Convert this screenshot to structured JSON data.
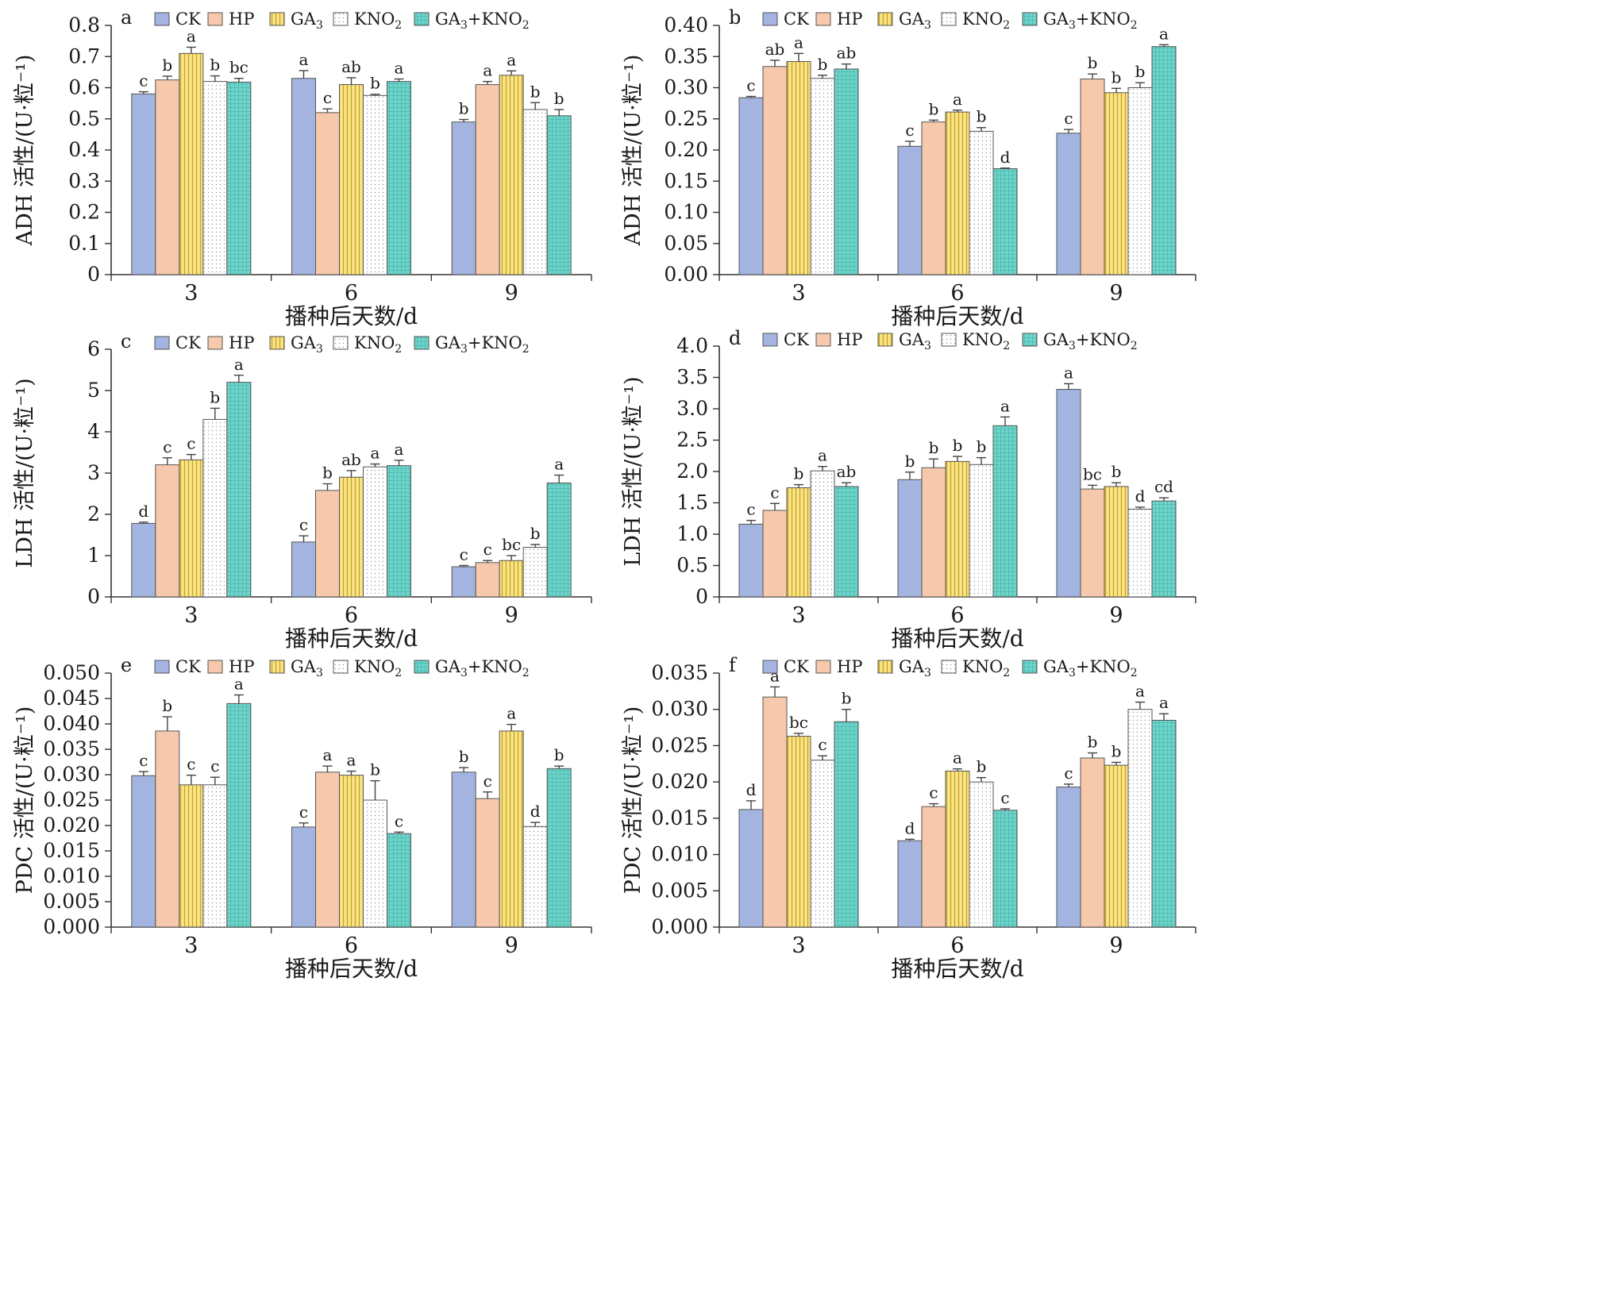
{
  "legend_labels": [
    "CK",
    "HP",
    "GA3",
    "KNO2",
    "GA3+KNO2"
  ],
  "series_styles": [
    {
      "fill": "#a3b4e0",
      "pattern": "solid"
    },
    {
      "fill": "#f6c9ac",
      "pattern": "solid"
    },
    {
      "fill": "#fbe68a",
      "pattern": "vlines"
    },
    {
      "fill": "#ffffff",
      "pattern": "dots"
    },
    {
      "fill": "#6fd3c9",
      "pattern": "grid"
    }
  ],
  "chart_data": [
    {
      "panel": "a",
      "type": "bar",
      "ylabel": "ADH 活性/(U·粒⁻¹)",
      "xlabel": "播种后天数/d",
      "categories": [
        "3",
        "6",
        "9"
      ],
      "ylim": [
        0,
        0.8
      ],
      "yticks": [
        "0",
        "0.1",
        "0.2",
        "0.3",
        "0.4",
        "0.5",
        "0.6",
        "0.7",
        "0.8"
      ],
      "series": [
        {
          "name": "CK",
          "values": [
            0.58,
            0.63,
            0.49
          ],
          "errors": [
            0.007,
            0.025,
            0.008
          ],
          "letters": [
            "c",
            "a",
            "b"
          ]
        },
        {
          "name": "HP",
          "values": [
            0.625,
            0.52,
            0.61
          ],
          "errors": [
            0.012,
            0.012,
            0.01
          ],
          "letters": [
            "b",
            "c",
            "a"
          ]
        },
        {
          "name": "GA3",
          "values": [
            0.71,
            0.61,
            0.64
          ],
          "errors": [
            0.02,
            0.022,
            0.014
          ],
          "letters": [
            "a",
            "ab",
            "a"
          ]
        },
        {
          "name": "KNO2",
          "values": [
            0.62,
            0.575,
            0.53
          ],
          "errors": [
            0.018,
            0.004,
            0.022
          ],
          "letters": [
            "b",
            "b",
            "b"
          ]
        },
        {
          "name": "GA3+KNO2",
          "values": [
            0.618,
            0.62,
            0.51
          ],
          "errors": [
            0.012,
            0.008,
            0.02
          ],
          "letters": [
            "bc",
            "a",
            "b"
          ]
        }
      ]
    },
    {
      "panel": "b",
      "type": "bar",
      "ylabel": "ADH 活性/(U·粒⁻¹)",
      "xlabel": "播种后天数/d",
      "categories": [
        "3",
        "6",
        "9"
      ],
      "ylim": [
        0,
        0.4
      ],
      "yticks": [
        "0.00",
        "0.05",
        "0.10",
        "0.15",
        "0.20",
        "0.25",
        "0.30",
        "0.35",
        "0.40"
      ],
      "series": [
        {
          "name": "CK",
          "values": [
            0.284,
            0.206,
            0.227
          ],
          "errors": [
            0.002,
            0.008,
            0.006
          ],
          "letters": [
            "c",
            "c",
            "c"
          ]
        },
        {
          "name": "HP",
          "values": [
            0.334,
            0.245,
            0.314
          ],
          "errors": [
            0.01,
            0.003,
            0.008
          ],
          "letters": [
            "ab",
            "b",
            "b"
          ]
        },
        {
          "name": "GA3",
          "values": [
            0.342,
            0.261,
            0.292
          ],
          "errors": [
            0.013,
            0.003,
            0.007
          ],
          "letters": [
            "a",
            "a",
            "b"
          ]
        },
        {
          "name": "KNO2",
          "values": [
            0.315,
            0.23,
            0.3
          ],
          "errors": [
            0.005,
            0.006,
            0.008
          ],
          "letters": [
            "b",
            "b",
            "b"
          ]
        },
        {
          "name": "GA3+KNO2",
          "values": [
            0.33,
            0.17,
            0.366
          ],
          "errors": [
            0.008,
            0.001,
            0.003
          ],
          "letters": [
            "ab",
            "d",
            "a"
          ]
        }
      ]
    },
    {
      "panel": "c",
      "type": "bar",
      "ylabel": "LDH 活性/(U·粒⁻¹)",
      "xlabel": "播种后天数/d",
      "categories": [
        "3",
        "6",
        "9"
      ],
      "ylim": [
        0,
        6
      ],
      "yticks": [
        "0",
        "1",
        "2",
        "3",
        "4",
        "5",
        "6"
      ],
      "series": [
        {
          "name": "CK",
          "values": [
            1.78,
            1.33,
            0.73
          ],
          "errors": [
            0.03,
            0.15,
            0.03
          ],
          "letters": [
            "d",
            "c",
            "c"
          ]
        },
        {
          "name": "HP",
          "values": [
            3.2,
            2.58,
            0.83
          ],
          "errors": [
            0.17,
            0.16,
            0.05
          ],
          "letters": [
            "c",
            "b",
            "c"
          ]
        },
        {
          "name": "GA3",
          "values": [
            3.32,
            2.9,
            0.88
          ],
          "errors": [
            0.13,
            0.16,
            0.12
          ],
          "letters": [
            "c",
            "ab",
            "bc"
          ]
        },
        {
          "name": "KNO2",
          "values": [
            4.3,
            3.15,
            1.2
          ],
          "errors": [
            0.27,
            0.07,
            0.07
          ],
          "letters": [
            "b",
            "a",
            "b"
          ]
        },
        {
          "name": "GA3+KNO2",
          "values": [
            5.2,
            3.18,
            2.76
          ],
          "errors": [
            0.17,
            0.13,
            0.19
          ],
          "letters": [
            "a",
            "a",
            "a"
          ]
        }
      ]
    },
    {
      "panel": "d",
      "type": "bar",
      "ylabel": "LDH 活性/(U·粒⁻¹)",
      "xlabel": "播种后天数/d",
      "categories": [
        "3",
        "6",
        "9"
      ],
      "ylim": [
        0,
        4.0
      ],
      "yticks": [
        "0",
        "0.5",
        "1.0",
        "1.5",
        "2.0",
        "2.5",
        "3.0",
        "3.5",
        "4.0"
      ],
      "series": [
        {
          "name": "CK",
          "values": [
            1.16,
            1.87,
            3.31
          ],
          "errors": [
            0.06,
            0.12,
            0.09
          ],
          "letters": [
            "c",
            "b",
            "a"
          ]
        },
        {
          "name": "HP",
          "values": [
            1.38,
            2.06,
            1.72
          ],
          "errors": [
            0.11,
            0.14,
            0.06
          ],
          "letters": [
            "c",
            "b",
            "bc"
          ]
        },
        {
          "name": "GA3",
          "values": [
            1.74,
            2.16,
            1.76
          ],
          "errors": [
            0.05,
            0.08,
            0.06
          ],
          "letters": [
            "b",
            "b",
            "b"
          ]
        },
        {
          "name": "KNO2",
          "values": [
            2.01,
            2.11,
            1.4
          ],
          "errors": [
            0.07,
            0.11,
            0.03
          ],
          "letters": [
            "a",
            "b",
            "d"
          ]
        },
        {
          "name": "GA3+KNO2",
          "values": [
            1.76,
            2.73,
            1.53
          ],
          "errors": [
            0.06,
            0.14,
            0.05
          ],
          "letters": [
            "ab",
            "a",
            "cd"
          ]
        }
      ]
    },
    {
      "panel": "e",
      "type": "bar",
      "ylabel": "PDC 活性/(U·粒⁻¹)",
      "xlabel": "播种后天数/d",
      "categories": [
        "3",
        "6",
        "9"
      ],
      "ylim": [
        0,
        0.05
      ],
      "yticks": [
        "0.000",
        "0.005",
        "0.010",
        "0.015",
        "0.020",
        "0.025",
        "0.030",
        "0.035",
        "0.040",
        "0.045",
        "0.050"
      ],
      "series": [
        {
          "name": "CK",
          "values": [
            0.0298,
            0.0197,
            0.0305
          ],
          "errors": [
            0.0008,
            0.0008,
            0.0009
          ],
          "letters": [
            "c",
            "c",
            "b"
          ]
        },
        {
          "name": "HP",
          "values": [
            0.0386,
            0.0305,
            0.0253
          ],
          "errors": [
            0.0028,
            0.0012,
            0.0013
          ],
          "letters": [
            "b",
            "a",
            "c"
          ]
        },
        {
          "name": "GA3",
          "values": [
            0.028,
            0.0299,
            0.0386
          ],
          "errors": [
            0.0019,
            0.0008,
            0.0013
          ],
          "letters": [
            "c",
            "a",
            "a"
          ]
        },
        {
          "name": "KNO2",
          "values": [
            0.028,
            0.025,
            0.0198
          ],
          "errors": [
            0.0015,
            0.0038,
            0.0008
          ],
          "letters": [
            "c",
            "b",
            "d"
          ]
        },
        {
          "name": "GA3+KNO2",
          "values": [
            0.044,
            0.0184,
            0.0312
          ],
          "errors": [
            0.0017,
            0.0003,
            0.0005
          ],
          "letters": [
            "a",
            "c",
            "b"
          ]
        }
      ]
    },
    {
      "panel": "f",
      "type": "bar",
      "ylabel": "PDC 活性/(U·粒⁻¹)",
      "xlabel": "播种后天数/d",
      "categories": [
        "3",
        "6",
        "9"
      ],
      "ylim": [
        0,
        0.035
      ],
      "yticks": [
        "0.000",
        "0.005",
        "0.010",
        "0.015",
        "0.020",
        "0.025",
        "0.030",
        "0.035"
      ],
      "series": [
        {
          "name": "CK",
          "values": [
            0.0162,
            0.0119,
            0.0193
          ],
          "errors": [
            0.0012,
            0.0002,
            0.0004
          ],
          "letters": [
            "d",
            "d",
            "c"
          ]
        },
        {
          "name": "HP",
          "values": [
            0.0317,
            0.0166,
            0.0233
          ],
          "errors": [
            0.0014,
            0.0004,
            0.0007
          ],
          "letters": [
            "a",
            "c",
            "b"
          ]
        },
        {
          "name": "GA3",
          "values": [
            0.0263,
            0.0215,
            0.0223
          ],
          "errors": [
            0.0004,
            0.0003,
            0.0004
          ],
          "letters": [
            "bc",
            "a",
            "b"
          ]
        },
        {
          "name": "KNO2",
          "values": [
            0.023,
            0.02,
            0.03
          ],
          "errors": [
            0.0006,
            0.0006,
            0.001
          ],
          "letters": [
            "c",
            "b",
            "a"
          ]
        },
        {
          "name": "GA3+KNO2",
          "values": [
            0.0283,
            0.0161,
            0.0285
          ],
          "errors": [
            0.0017,
            0.0002,
            0.0009
          ],
          "letters": [
            "b",
            "c",
            "a"
          ]
        }
      ]
    }
  ]
}
